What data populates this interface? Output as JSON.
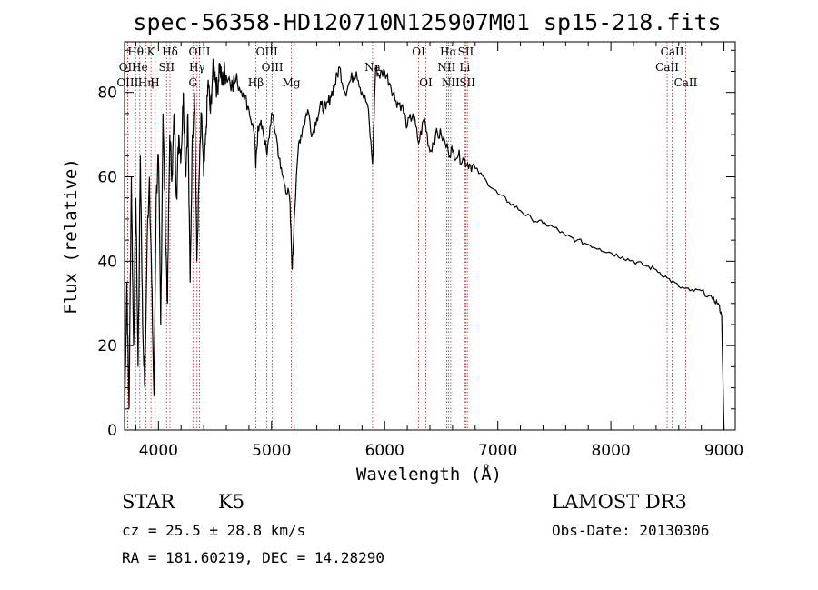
{
  "chart_data": {
    "type": "line",
    "title": "spec-56358-HD120710N125907M01_sp15-218.fits",
    "xlabel": "Wavelength (Å)",
    "ylabel": "Flux (relative)",
    "xlim": [
      3700,
      9100
    ],
    "ylim": [
      0,
      92
    ],
    "x_ticks": [
      4000,
      5000,
      6000,
      7000,
      8000,
      9000
    ],
    "y_ticks": [
      0,
      20,
      40,
      60,
      80
    ],
    "series": [
      {
        "name": "flux",
        "x": [
          3700,
          3720,
          3740,
          3760,
          3780,
          3800,
          3820,
          3840,
          3860,
          3880,
          3900,
          3920,
          3940,
          3960,
          3980,
          4000,
          4020,
          4040,
          4060,
          4080,
          4100,
          4120,
          4140,
          4160,
          4180,
          4200,
          4220,
          4240,
          4260,
          4280,
          4300,
          4320,
          4340,
          4360,
          4380,
          4400,
          4420,
          4440,
          4460,
          4480,
          4500,
          4520,
          4540,
          4560,
          4580,
          4600,
          4650,
          4700,
          4750,
          4800,
          4850,
          4861,
          4880,
          4920,
          4960,
          5000,
          5040,
          5080,
          5120,
          5160,
          5183,
          5200,
          5240,
          5280,
          5320,
          5360,
          5400,
          5440,
          5480,
          5520,
          5560,
          5600,
          5650,
          5700,
          5750,
          5800,
          5850,
          5893,
          5920,
          5950,
          6000,
          6050,
          6100,
          6150,
          6200,
          6250,
          6300,
          6350,
          6400,
          6450,
          6500,
          6563,
          6600,
          6650,
          6700,
          6750,
          6800,
          6900,
          7000,
          7100,
          7200,
          7300,
          7400,
          7500,
          7600,
          7700,
          7800,
          7900,
          8000,
          8100,
          8200,
          8300,
          8400,
          8500,
          8600,
          8700,
          8800,
          8900,
          8950,
          8980,
          9000
        ],
        "y": [
          2,
          35,
          5,
          60,
          20,
          55,
          15,
          65,
          25,
          10,
          45,
          60,
          35,
          8,
          55,
          65,
          25,
          75,
          50,
          30,
          70,
          60,
          75,
          55,
          70,
          65,
          80,
          60,
          75,
          35,
          70,
          80,
          40,
          60,
          75,
          60,
          70,
          83,
          75,
          85,
          85,
          80,
          87,
          82,
          85,
          84,
          83,
          82,
          80,
          76,
          70,
          62,
          72,
          72,
          65,
          75,
          70,
          62,
          58,
          55,
          38,
          50,
          68,
          72,
          76,
          70,
          74,
          77,
          76,
          79,
          82,
          86,
          80,
          83,
          85,
          80,
          77,
          63,
          86,
          84,
          85,
          82,
          78,
          77,
          72,
          75,
          68,
          74,
          66,
          70,
          70,
          66,
          66,
          65,
          64,
          63,
          62,
          59,
          56,
          54,
          52,
          50,
          49,
          48,
          46,
          45,
          44,
          43,
          42,
          41,
          40,
          39,
          38,
          36,
          34,
          33,
          33,
          31,
          30,
          27,
          0
        ]
      }
    ],
    "spectral_lines": [
      {
        "label": "Hθ",
        "wavelength": 3798,
        "row": 0
      },
      {
        "label": "OII",
        "wavelength": 3727,
        "row": 1
      },
      {
        "label": "OIII",
        "wavelength": 3727,
        "row": 2
      },
      {
        "label": "He",
        "wavelength": 3835,
        "row": 1
      },
      {
        "label": "Hη",
        "wavelength": 3889,
        "row": 2
      },
      {
        "label": "K",
        "wavelength": 3934,
        "row": 0
      },
      {
        "label": "H",
        "wavelength": 3969,
        "row": 2
      },
      {
        "label": "SII",
        "wavelength": 4072,
        "row": 1
      },
      {
        "label": "Hδ",
        "wavelength": 4102,
        "row": 0
      },
      {
        "label": "OIII",
        "wavelength": 4363,
        "row": 0
      },
      {
        "label": "Hγ",
        "wavelength": 4341,
        "row": 1
      },
      {
        "label": "G",
        "wavelength": 4305,
        "row": 2
      },
      {
        "label": "OIII",
        "wavelength": 4959,
        "row": 0
      },
      {
        "label": "OIII",
        "wavelength": 5007,
        "row": 1
      },
      {
        "label": "Hβ",
        "wavelength": 4861,
        "row": 2
      },
      {
        "label": "Mg",
        "wavelength": 5175,
        "row": 2
      },
      {
        "label": "Na",
        "wavelength": 5893,
        "row": 1
      },
      {
        "label": "OI",
        "wavelength": 6300,
        "row": 0
      },
      {
        "label": "OI",
        "wavelength": 6364,
        "row": 2
      },
      {
        "label": "Hα",
        "wavelength": 6563,
        "row": 0
      },
      {
        "label": "NII",
        "wavelength": 6548,
        "row": 1
      },
      {
        "label": "NII",
        "wavelength": 6584,
        "row": 2
      },
      {
        "label": "SII",
        "wavelength": 6717,
        "row": 0
      },
      {
        "label": "Li",
        "wavelength": 6708,
        "row": 1
      },
      {
        "label": "SII",
        "wavelength": 6731,
        "row": 2
      },
      {
        "label": "CaII",
        "wavelength": 8542,
        "row": 0
      },
      {
        "label": "CaII",
        "wavelength": 8498,
        "row": 1
      },
      {
        "label": "CaII",
        "wavelength": 8662,
        "row": 2
      }
    ],
    "line_color": "#b22222",
    "flux_color": "#000000"
  },
  "info": {
    "object_type": "STAR",
    "subclass": "K5",
    "survey": "LAMOST DR3",
    "cz": "cz = 25.5 ± 28.8 km/s",
    "obs_date": "Obs-Date: 20130306",
    "coords": "RA = 181.60219, DEC =  14.28290"
  }
}
